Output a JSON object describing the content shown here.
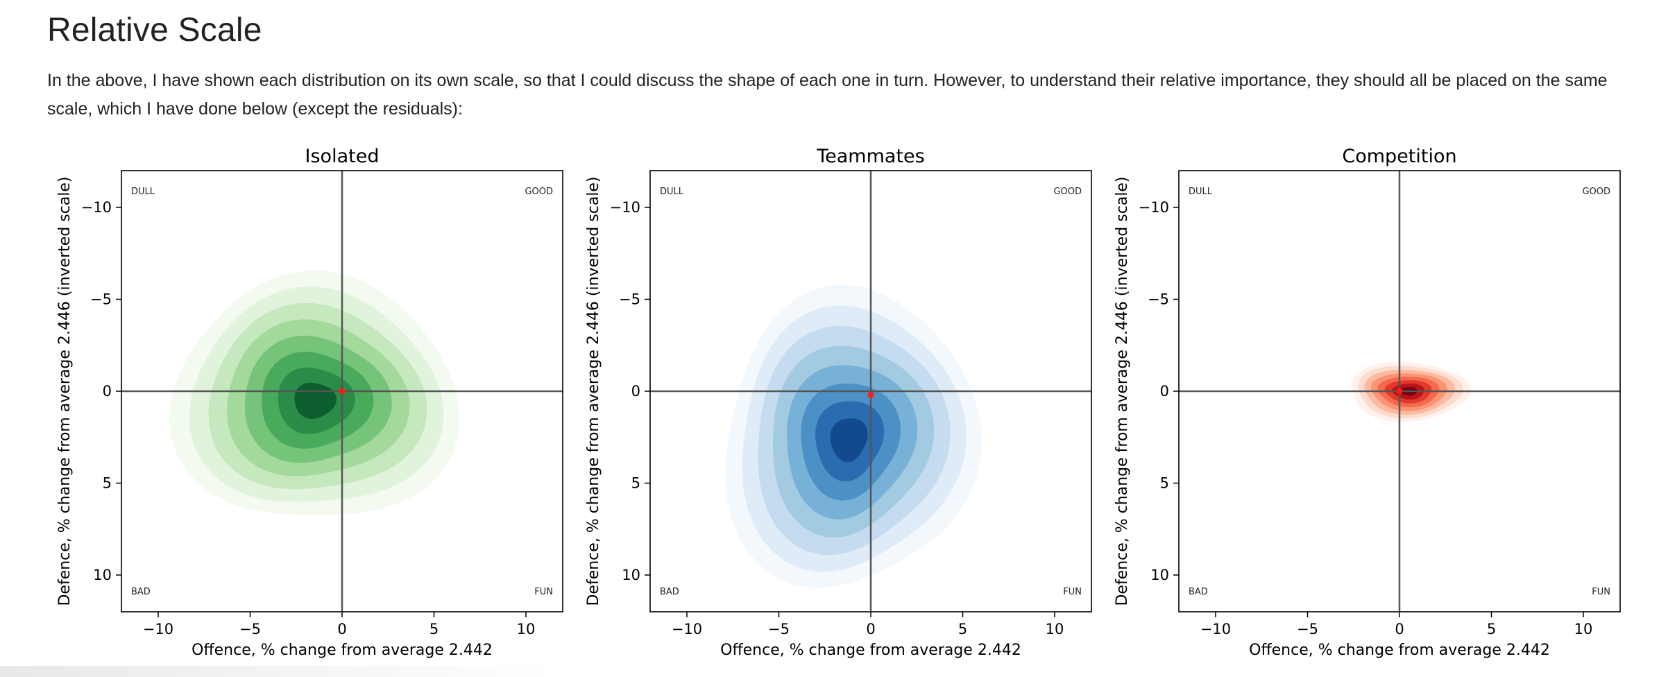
{
  "page": {
    "title": "Relative Scale",
    "intro": "In the above, I have shown each distribution on its own scale, so that I could discuss the shape of each one in turn. However, to understand their relative importance, they should all be placed on the same scale, which I have done below (except the residuals):"
  },
  "chart_data": [
    {
      "type": "contour",
      "title": "Isolated",
      "xlabel": "Offence, % change from average 2.442",
      "ylabel": "Defence, % change from average 2.446 (inverted scale)",
      "xlim": [
        -12,
        12
      ],
      "ylim": [
        12,
        -12
      ],
      "y_inverted": true,
      "xticks": [
        -10,
        -5,
        0,
        5,
        10
      ],
      "yticks": [
        -10,
        -5,
        0,
        5,
        10
      ],
      "xtick_labels": [
        "−10",
        "−5",
        "0",
        "5",
        "10"
      ],
      "ytick_labels": [
        "−10",
        "−5",
        "0",
        "5",
        "10"
      ],
      "quadrant_labels": {
        "top_left": "DULL",
        "top_right": "GOOD",
        "bottom_left": "BAD",
        "bottom_right": "FUN"
      },
      "colormap": "Greens",
      "palette": [
        "#f3faf0",
        "#e1f3dc",
        "#c6e8bf",
        "#a3d99b",
        "#76c47a",
        "#4aaa5c",
        "#2b8b48",
        "#0c5e2e"
      ],
      "density_center": {
        "x": -1.5,
        "y": 0.5
      },
      "density_spread": {
        "x": 6.5,
        "y": 6.0
      },
      "reference_point": {
        "x": 0,
        "y": 0
      },
      "reference_lines": {
        "x": 0,
        "y": 0
      }
    },
    {
      "type": "contour",
      "title": "Teammates",
      "xlabel": "Offence, % change from average 2.442",
      "ylabel": "Defence, % change from average 2.446 (inverted scale)",
      "xlim": [
        -12,
        12
      ],
      "ylim": [
        12,
        -12
      ],
      "y_inverted": true,
      "xticks": [
        -10,
        -5,
        0,
        5,
        10
      ],
      "yticks": [
        -10,
        -5,
        0,
        5,
        10
      ],
      "xtick_labels": [
        "−10",
        "−5",
        "0",
        "5",
        "10"
      ],
      "ytick_labels": [
        "−10",
        "−5",
        "0",
        "5",
        "10"
      ],
      "quadrant_labels": {
        "top_left": "DULL",
        "top_right": "GOOD",
        "bottom_left": "BAD",
        "bottom_right": "FUN"
      },
      "colormap": "Blues",
      "palette": [
        "#f3f8fd",
        "#dfebf7",
        "#c5dbef",
        "#a2cbe2",
        "#77b1d7",
        "#4c91c6",
        "#2a6cb0",
        "#124a8b"
      ],
      "density_center": {
        "x": -1.2,
        "y": 2.6
      },
      "density_spread": {
        "x": 6.0,
        "y": 7.0
      },
      "reference_point": {
        "x": 0,
        "y": 0.2
      },
      "reference_lines": {
        "x": 0,
        "y": 0
      }
    },
    {
      "type": "contour",
      "title": "Competition",
      "xlabel": "Offence, % change from average 2.442",
      "ylabel": "Defence, % change from average 2.446 (inverted scale)",
      "xlim": [
        -12,
        12
      ],
      "ylim": [
        12,
        -12
      ],
      "y_inverted": true,
      "xticks": [
        -10,
        -5,
        0,
        5,
        10
      ],
      "yticks": [
        -10,
        -5,
        0,
        5,
        10
      ],
      "xtick_labels": [
        "−10",
        "−5",
        "0",
        "5",
        "10"
      ],
      "ytick_labels": [
        "−10",
        "−5",
        "0",
        "5",
        "10"
      ],
      "quadrant_labels": {
        "top_left": "DULL",
        "top_right": "GOOD",
        "bottom_left": "BAD",
        "bottom_right": "FUN"
      },
      "colormap": "Reds",
      "palette": [
        "#fff1ec",
        "#fddccf",
        "#fcbba1",
        "#fb9474",
        "#f6694c",
        "#e03a2f",
        "#bb1418",
        "#6f0010"
      ],
      "density_center": {
        "x": 0.5,
        "y": 0.0
      },
      "density_spread": {
        "x": 2.9,
        "y": 1.35
      },
      "reference_point": {
        "x": 0,
        "y": 0
      },
      "reference_lines": {
        "x": 0,
        "y": 0
      }
    }
  ]
}
